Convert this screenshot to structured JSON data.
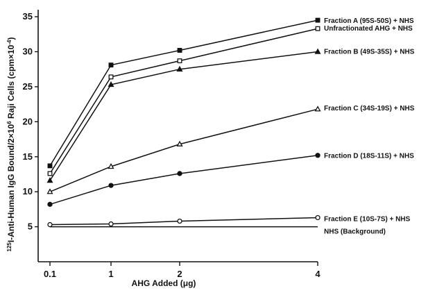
{
  "chart_data": {
    "type": "line",
    "xlabel": "AHG Added (μg)",
    "ylabel": "125I-Anti-Human IgG Bound/2×10⁶ Raji Cells (cpm×10⁻⁴)",
    "ylabel_parts": {
      "iso": "125",
      "main": "I-Anti-Human IgG Bound/2×10",
      "exp": "6",
      "tail": " Raji Cells (cpm×10",
      "unit_exp": "-4",
      "close": ")"
    },
    "x_ticks": [
      {
        "value": 0.1,
        "label": "0.1"
      },
      {
        "value": 1,
        "label": "1"
      },
      {
        "value": 2,
        "label": "2"
      },
      {
        "value": 4,
        "label": "4"
      }
    ],
    "y_ticks": [
      {
        "value": 5,
        "label": "5"
      },
      {
        "value": 10,
        "label": "10"
      },
      {
        "value": 15,
        "label": "15"
      },
      {
        "value": 20,
        "label": "20"
      },
      {
        "value": 25,
        "label": "25"
      },
      {
        "value": 30,
        "label": "30"
      },
      {
        "value": 35,
        "label": "35"
      }
    ],
    "ylim": [
      0,
      36
    ],
    "grid": false,
    "series": [
      {
        "name": "Fraction A (95S-50S) + NHS",
        "marker": "filled-square",
        "x": [
          0.1,
          1,
          2,
          4
        ],
        "values": [
          13.7,
          28.1,
          30.2,
          34.5
        ]
      },
      {
        "name": "Unfractionated AHG + NHS",
        "marker": "open-square",
        "x": [
          0.1,
          1,
          2,
          4
        ],
        "values": [
          12.6,
          26.4,
          28.7,
          33.3
        ]
      },
      {
        "name": "Fraction B (49S-35S) + NHS",
        "marker": "filled-triangle",
        "x": [
          0.1,
          1,
          2,
          4
        ],
        "values": [
          11.6,
          25.3,
          27.5,
          30.0
        ]
      },
      {
        "name": "Fraction C (34S-19S) + NHS",
        "marker": "open-triangle",
        "x": [
          0.1,
          1,
          2,
          4
        ],
        "values": [
          10.0,
          13.6,
          16.8,
          21.8
        ]
      },
      {
        "name": "Fraction D (18S-11S) + NHS",
        "marker": "filled-circle",
        "x": [
          0.1,
          1,
          2,
          4
        ],
        "values": [
          8.2,
          10.9,
          12.6,
          15.2
        ]
      },
      {
        "name": "Fraction E (10S-7S) + NHS",
        "marker": "open-circle",
        "x": [
          0.1,
          1,
          2,
          4
        ],
        "values": [
          5.3,
          5.4,
          5.8,
          6.3
        ]
      },
      {
        "name": "NHS (Background)",
        "marker": "none",
        "x": [
          0.1,
          4
        ],
        "values": [
          5.0,
          5.0
        ]
      }
    ]
  }
}
